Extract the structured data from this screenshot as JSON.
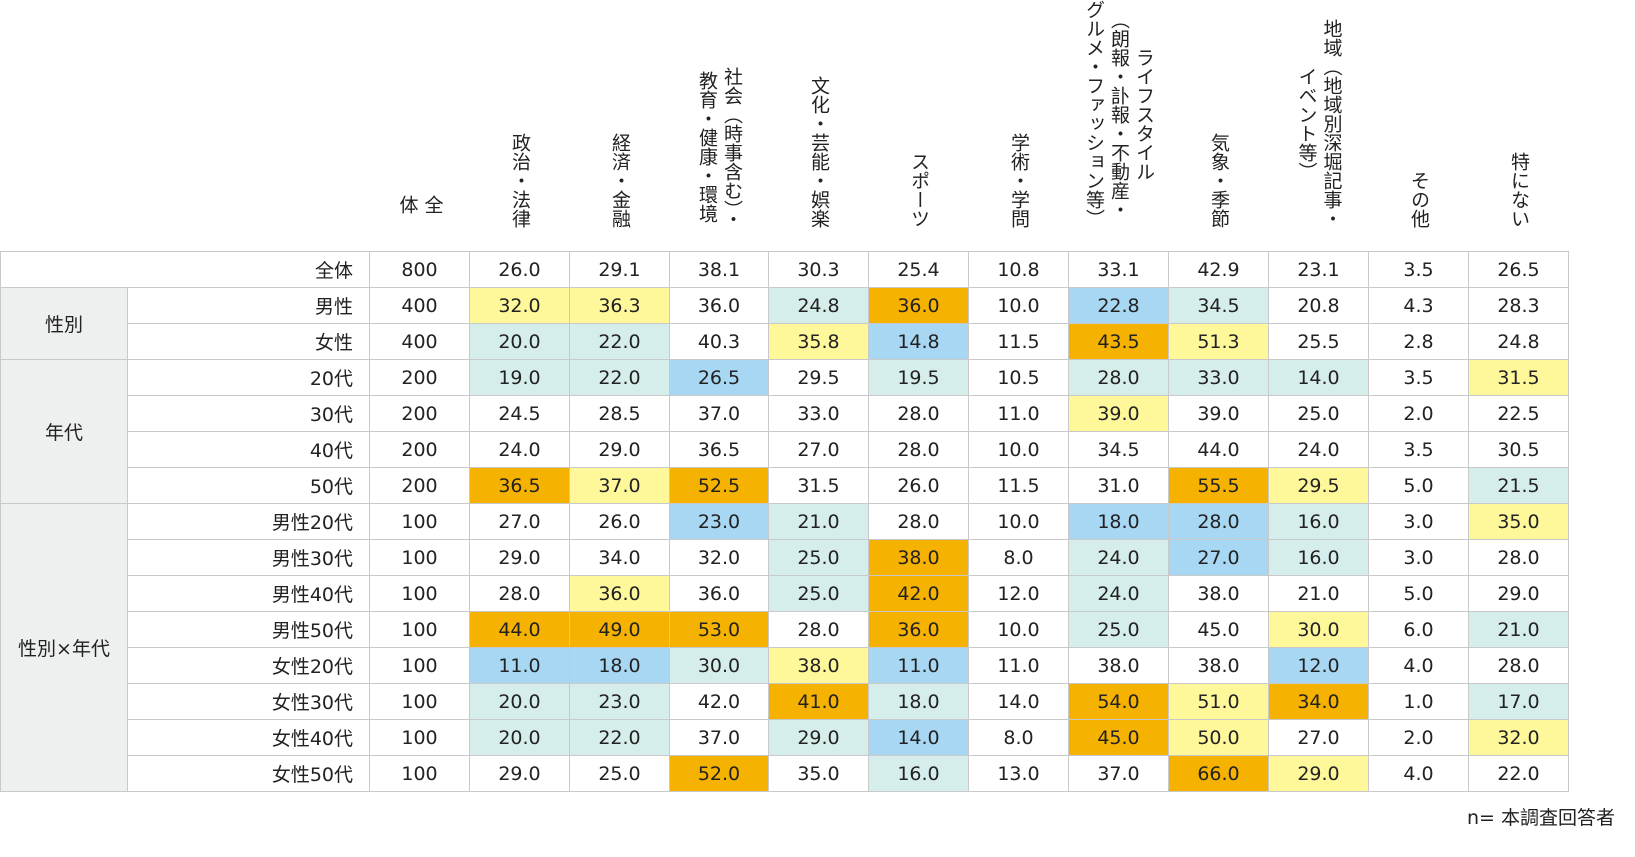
{
  "chart_data": {
    "type": "table",
    "headers": [
      [
        "全",
        "体"
      ],
      [
        "政治・法律"
      ],
      [
        "経済・金融"
      ],
      [
        "社会（時事含む）・",
        "教育・健康・環境"
      ],
      [
        "文化・芸能・娯楽"
      ],
      [
        "スポーツ"
      ],
      [
        "学術・学問"
      ],
      [
        "ライフスタイル",
        "（朗報・訃報・不動産・",
        "グルメ・ファッション等）"
      ],
      [
        "気象・季節"
      ],
      [
        "地域（地域別深堀記事・",
        "イベント等）"
      ],
      [
        "その他"
      ],
      [
        "特にない"
      ]
    ],
    "total_row": {
      "label": "全体",
      "n": "800",
      "values": [
        "26.0",
        "29.1",
        "38.1",
        "30.3",
        "25.4",
        "10.8",
        "33.1",
        "42.9",
        "23.1",
        "3.5",
        "26.5"
      ]
    },
    "groups": [
      {
        "group": "性別",
        "rows": [
          {
            "label": "男性",
            "n": "400",
            "values": [
              "32.0",
              "36.3",
              "36.0",
              "24.8",
              "36.0",
              "10.0",
              "22.8",
              "34.5",
              "20.8",
              "4.3",
              "28.3"
            ],
            "colors": [
              "y",
              "y",
              "",
              "g",
              "o",
              "",
              "b",
              "g",
              "",
              "",
              ""
            ]
          },
          {
            "label": "女性",
            "n": "400",
            "values": [
              "20.0",
              "22.0",
              "40.3",
              "35.8",
              "14.8",
              "11.5",
              "43.5",
              "51.3",
              "25.5",
              "2.8",
              "24.8"
            ],
            "colors": [
              "g",
              "g",
              "",
              "y",
              "b",
              "",
              "o",
              "y",
              "",
              "",
              ""
            ]
          }
        ]
      },
      {
        "group": "年代",
        "rows": [
          {
            "label": "20代",
            "n": "200",
            "values": [
              "19.0",
              "22.0",
              "26.5",
              "29.5",
              "19.5",
              "10.5",
              "28.0",
              "33.0",
              "14.0",
              "3.5",
              "31.5"
            ],
            "colors": [
              "g",
              "g",
              "b",
              "",
              "g",
              "",
              "g",
              "g",
              "g",
              "",
              "y"
            ]
          },
          {
            "label": "30代",
            "n": "200",
            "values": [
              "24.5",
              "28.5",
              "37.0",
              "33.0",
              "28.0",
              "11.0",
              "39.0",
              "39.0",
              "25.0",
              "2.0",
              "22.5"
            ],
            "colors": [
              "",
              "",
              "",
              "",
              "",
              "",
              "y",
              "",
              "",
              "",
              ""
            ]
          },
          {
            "label": "40代",
            "n": "200",
            "values": [
              "24.0",
              "29.0",
              "36.5",
              "27.0",
              "28.0",
              "10.0",
              "34.5",
              "44.0",
              "24.0",
              "3.5",
              "30.5"
            ],
            "colors": [
              "",
              "",
              "",
              "",
              "",
              "",
              "",
              "",
              "",
              "",
              ""
            ]
          },
          {
            "label": "50代",
            "n": "200",
            "values": [
              "36.5",
              "37.0",
              "52.5",
              "31.5",
              "26.0",
              "11.5",
              "31.0",
              "55.5",
              "29.5",
              "5.0",
              "21.5"
            ],
            "colors": [
              "o",
              "y",
              "o",
              "",
              "",
              "",
              "",
              "o",
              "y",
              "",
              "g"
            ]
          }
        ]
      },
      {
        "group": "性別×年代",
        "rows": [
          {
            "label": "男性20代",
            "n": "100",
            "values": [
              "27.0",
              "26.0",
              "23.0",
              "21.0",
              "28.0",
              "10.0",
              "18.0",
              "28.0",
              "16.0",
              "3.0",
              "35.0"
            ],
            "colors": [
              "",
              "",
              "b",
              "g",
              "",
              "",
              "b",
              "b",
              "g",
              "",
              "y"
            ]
          },
          {
            "label": "男性30代",
            "n": "100",
            "values": [
              "29.0",
              "34.0",
              "32.0",
              "25.0",
              "38.0",
              "8.0",
              "24.0",
              "27.0",
              "16.0",
              "3.0",
              "28.0"
            ],
            "colors": [
              "",
              "",
              "",
              "g",
              "o",
              "",
              "g",
              "b",
              "g",
              "",
              ""
            ]
          },
          {
            "label": "男性40代",
            "n": "100",
            "values": [
              "28.0",
              "36.0",
              "36.0",
              "25.0",
              "42.0",
              "12.0",
              "24.0",
              "38.0",
              "21.0",
              "5.0",
              "29.0"
            ],
            "colors": [
              "",
              "y",
              "",
              "g",
              "o",
              "",
              "g",
              "",
              "",
              "",
              ""
            ]
          },
          {
            "label": "男性50代",
            "n": "100",
            "values": [
              "44.0",
              "49.0",
              "53.0",
              "28.0",
              "36.0",
              "10.0",
              "25.0",
              "45.0",
              "30.0",
              "6.0",
              "21.0"
            ],
            "colors": [
              "o",
              "o",
              "o",
              "",
              "o",
              "",
              "g",
              "",
              "y",
              "",
              "g"
            ]
          },
          {
            "label": "女性20代",
            "n": "100",
            "values": [
              "11.0",
              "18.0",
              "30.0",
              "38.0",
              "11.0",
              "11.0",
              "38.0",
              "38.0",
              "12.0",
              "4.0",
              "28.0"
            ],
            "colors": [
              "b",
              "b",
              "g",
              "y",
              "b",
              "",
              "",
              "",
              "b",
              "",
              ""
            ]
          },
          {
            "label": "女性30代",
            "n": "100",
            "values": [
              "20.0",
              "23.0",
              "42.0",
              "41.0",
              "18.0",
              "14.0",
              "54.0",
              "51.0",
              "34.0",
              "1.0",
              "17.0"
            ],
            "colors": [
              "g",
              "g",
              "",
              "o",
              "g",
              "",
              "o",
              "y",
              "o",
              "",
              "g"
            ]
          },
          {
            "label": "女性40代",
            "n": "100",
            "values": [
              "20.0",
              "22.0",
              "37.0",
              "29.0",
              "14.0",
              "8.0",
              "45.0",
              "50.0",
              "27.0",
              "2.0",
              "32.0"
            ],
            "colors": [
              "g",
              "g",
              "",
              "g",
              "b",
              "",
              "o",
              "y",
              "",
              "",
              "y"
            ]
          },
          {
            "label": "女性50代",
            "n": "100",
            "values": [
              "29.0",
              "25.0",
              "52.0",
              "35.0",
              "16.0",
              "13.0",
              "37.0",
              "66.0",
              "29.0",
              "4.0",
              "22.0"
            ],
            "colors": [
              "",
              "",
              "o",
              "",
              "g",
              "",
              "",
              "o",
              "y",
              "",
              ""
            ]
          }
        ]
      }
    ],
    "color_legend": {
      "o": "#f6b200",
      "y": "#fef89b",
      "b": "#a7d7f3",
      "g": "#d6eeeb"
    }
  },
  "footnote": "n= 本調査回答者"
}
